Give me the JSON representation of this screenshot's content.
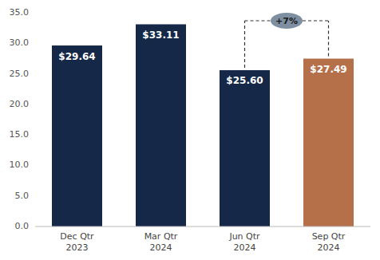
{
  "chart_data": {
    "type": "bar",
    "categories": [
      "Dec Qtr\n2023",
      "Mar Qtr\n2024",
      "Jun Qtr\n2024",
      "Sep Qtr\n2024"
    ],
    "values": [
      29.64,
      33.11,
      25.6,
      27.49
    ],
    "colors": [
      "#152848",
      "#152848",
      "#152848",
      "#b5704a"
    ],
    "data_labels": true,
    "value_labels": [
      "$29.64",
      "$33.11",
      "$25.60",
      "$27.49"
    ],
    "ylim": [
      0,
      35
    ],
    "yticks": [
      {
        "value": 0,
        "label": "0.0"
      },
      {
        "value": 5,
        "label": "5.0"
      },
      {
        "value": 10,
        "label": "10.0"
      },
      {
        "value": 15,
        "label": "15.0"
      },
      {
        "value": 20,
        "label": "20.0"
      },
      {
        "value": 25,
        "label": "25.0"
      },
      {
        "value": 30,
        "label": "30.0"
      },
      {
        "value": 35,
        "label": "35.0"
      }
    ],
    "grid": false,
    "annotations": [
      "+7%"
    ]
  }
}
